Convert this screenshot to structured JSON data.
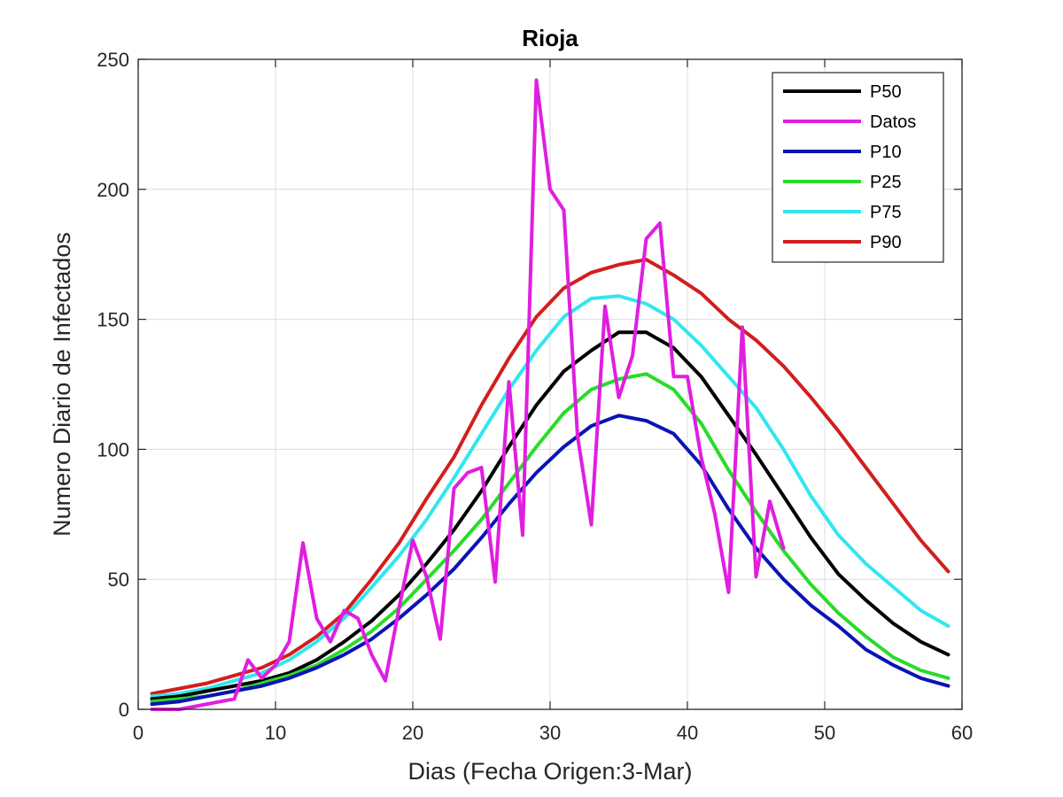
{
  "chart_data": {
    "type": "line",
    "title": "Rioja",
    "xlabel": "Dias (Fecha Origen:3-Mar)",
    "ylabel": "Numero Diario de Infectados",
    "xlim": [
      0,
      60
    ],
    "ylim": [
      0,
      250
    ],
    "xticks": [
      0,
      10,
      20,
      30,
      40,
      50,
      60
    ],
    "yticks": [
      0,
      50,
      100,
      150,
      200,
      250
    ],
    "grid": true,
    "legend_position": "top-right",
    "colors": {
      "P50": "#000000",
      "Datos": "#e01ee0",
      "P10": "#0a14b4",
      "P25": "#28dc28",
      "P75": "#32e6f0",
      "P90": "#d21e1e"
    },
    "series": [
      {
        "name": "P50",
        "x": [
          1,
          3,
          5,
          7,
          9,
          11,
          13,
          15,
          17,
          19,
          21,
          23,
          25,
          27,
          29,
          31,
          33,
          35,
          37,
          39,
          41,
          43,
          45,
          47,
          49,
          51,
          53,
          55,
          57,
          59
        ],
        "values": [
          4,
          5,
          7,
          9,
          11,
          14,
          19,
          26,
          34,
          44,
          56,
          69,
          84,
          101,
          117,
          130,
          138,
          145,
          145,
          139,
          128,
          113,
          98,
          82,
          66,
          52,
          42,
          33,
          26,
          21
        ]
      },
      {
        "name": "Datos",
        "x": [
          1,
          2,
          3,
          4,
          5,
          6,
          7,
          8,
          9,
          10,
          11,
          12,
          13,
          14,
          15,
          16,
          17,
          18,
          19,
          20,
          21,
          22,
          23,
          24,
          25,
          26,
          27,
          28,
          29,
          30,
          31,
          32,
          33,
          34,
          35,
          36,
          37,
          38,
          39,
          40,
          41,
          42,
          43,
          44,
          45,
          46,
          47
        ],
        "values": [
          0,
          0,
          0,
          1,
          2,
          3,
          4,
          19,
          12,
          17,
          26,
          64,
          35,
          26,
          38,
          35,
          21,
          11,
          39,
          65,
          51,
          27,
          85,
          91,
          93,
          49,
          126,
          67,
          242,
          200,
          192,
          105,
          71,
          155,
          120,
          136,
          181,
          187,
          128,
          128,
          97,
          75,
          45,
          147,
          51,
          80,
          62
        ]
      },
      {
        "name": "P10",
        "x": [
          1,
          3,
          5,
          7,
          9,
          11,
          13,
          15,
          17,
          19,
          21,
          23,
          25,
          27,
          29,
          31,
          33,
          35,
          37,
          39,
          41,
          43,
          45,
          47,
          49,
          51,
          53,
          55,
          57,
          59
        ],
        "values": [
          2,
          3,
          5,
          7,
          9,
          12,
          16,
          21,
          27,
          35,
          44,
          54,
          66,
          79,
          91,
          101,
          109,
          113,
          111,
          106,
          94,
          77,
          62,
          50,
          40,
          32,
          23,
          17,
          12,
          9
        ]
      },
      {
        "name": "P25",
        "x": [
          1,
          3,
          5,
          7,
          9,
          11,
          13,
          15,
          17,
          19,
          21,
          23,
          25,
          27,
          29,
          31,
          33,
          35,
          37,
          39,
          41,
          43,
          45,
          47,
          49,
          51,
          53,
          55,
          57,
          59
        ],
        "values": [
          3,
          4,
          5,
          7,
          10,
          13,
          17,
          23,
          30,
          39,
          50,
          61,
          73,
          87,
          101,
          114,
          123,
          127,
          129,
          123,
          110,
          92,
          76,
          61,
          48,
          37,
          28,
          20,
          15,
          12
        ]
      },
      {
        "name": "P75",
        "x": [
          1,
          3,
          5,
          7,
          9,
          11,
          13,
          15,
          17,
          19,
          21,
          23,
          25,
          27,
          29,
          31,
          33,
          35,
          37,
          39,
          41,
          43,
          45,
          47,
          49,
          51,
          53,
          55,
          57,
          59
        ],
        "values": [
          5,
          6,
          8,
          11,
          14,
          19,
          26,
          35,
          47,
          59,
          73,
          89,
          106,
          123,
          138,
          151,
          158,
          159,
          156,
          150,
          140,
          128,
          116,
          100,
          82,
          67,
          56,
          47,
          38,
          32
        ]
      },
      {
        "name": "P90",
        "x": [
          1,
          3,
          5,
          7,
          9,
          11,
          13,
          15,
          17,
          19,
          21,
          23,
          25,
          27,
          29,
          31,
          33,
          35,
          37,
          39,
          41,
          43,
          45,
          47,
          49,
          51,
          53,
          55,
          57,
          59
        ],
        "values": [
          6,
          8,
          10,
          13,
          16,
          21,
          28,
          37,
          50,
          64,
          81,
          97,
          117,
          135,
          151,
          162,
          168,
          171,
          173,
          167,
          160,
          150,
          142,
          132,
          120,
          107,
          93,
          79,
          65,
          53
        ]
      }
    ]
  }
}
